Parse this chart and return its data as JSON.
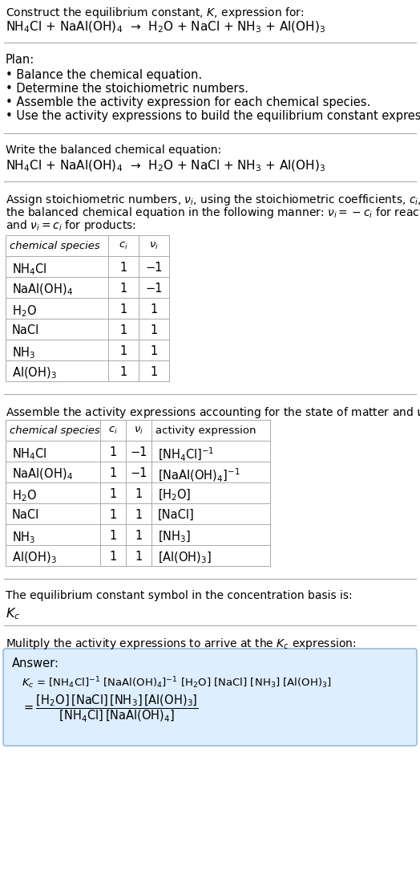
{
  "title_line1": "Construct the equilibrium constant, $K$, expression for:",
  "title_line2": "NH$_4$Cl + NaAl(OH)$_4$  →  H$_2$O + NaCl + NH$_3$ + Al(OH)$_3$",
  "plan_header": "Plan:",
  "plan_items": [
    "• Balance the chemical equation.",
    "• Determine the stoichiometric numbers.",
    "• Assemble the activity expression for each chemical species.",
    "• Use the activity expressions to build the equilibrium constant expression."
  ],
  "balanced_eq_header": "Write the balanced chemical equation:",
  "balanced_eq": "NH$_4$Cl + NaAl(OH)$_4$  →  H$_2$O + NaCl + NH$_3$ + Al(OH)$_3$",
  "stoich_intro": "Assign stoichiometric numbers, $\\nu_i$, using the stoichiometric coefficients, $c_i$, from\nthe balanced chemical equation in the following manner: $\\nu_i = -c_i$ for reactants\nand $\\nu_i = c_i$ for products:",
  "table1_headers": [
    "chemical species",
    "$c_i$",
    "$\\nu_i$"
  ],
  "table1_rows": [
    [
      "NH$_4$Cl",
      "1",
      "−1"
    ],
    [
      "NaAl(OH)$_4$",
      "1",
      "−1"
    ],
    [
      "H$_2$O",
      "1",
      "1"
    ],
    [
      "NaCl",
      "1",
      "1"
    ],
    [
      "NH$_3$",
      "1",
      "1"
    ],
    [
      "Al(OH)$_3$",
      "1",
      "1"
    ]
  ],
  "activity_intro": "Assemble the activity expressions accounting for the state of matter and $\\nu_i$:",
  "table2_headers": [
    "chemical species",
    "$c_i$",
    "$\\nu_i$",
    "activity expression"
  ],
  "table2_rows": [
    [
      "NH$_4$Cl",
      "1",
      "−1",
      "[NH$_4$Cl]$^{-1}$"
    ],
    [
      "NaAl(OH)$_4$",
      "1",
      "−1",
      "[NaAl(OH)$_4$]$^{-1}$"
    ],
    [
      "H$_2$O",
      "1",
      "1",
      "[H$_2$O]"
    ],
    [
      "NaCl",
      "1",
      "1",
      "[NaCl]"
    ],
    [
      "NH$_3$",
      "1",
      "1",
      "[NH$_3$]"
    ],
    [
      "Al(OH)$_3$",
      "1",
      "1",
      "[Al(OH)$_3$]"
    ]
  ],
  "kc_symbol_text": "The equilibrium constant symbol in the concentration basis is:",
  "kc_symbol": "$K_c$",
  "multiply_text": "Mulitply the activity expressions to arrive at the $K_c$ expression:",
  "answer_label": "Answer:",
  "bg_color": "#ffffff",
  "table_border_color": "#bbbbbb",
  "answer_box_facecolor": "#ddeeff",
  "answer_box_edgecolor": "#99bbdd",
  "text_color": "#000000",
  "font_size": 10.5
}
